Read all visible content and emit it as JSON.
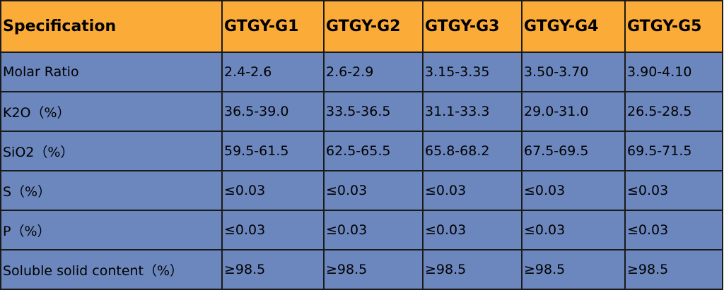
{
  "table": {
    "header": [
      "Specification",
      "GTGY-G1",
      "GTGY-G2",
      "GTGY-G3",
      "GTGY-G4",
      "GTGY-G5"
    ],
    "rows": [
      [
        "Molar Ratio",
        "2.4-2.6",
        "2.6-2.9",
        "3.15-3.35",
        "3.50-3.70",
        "3.90-4.10"
      ],
      [
        "K2O（%）",
        "36.5-39.0",
        "33.5-36.5",
        "31.1-33.3",
        "29.0-31.0",
        "26.5-28.5"
      ],
      [
        "SiO2（%）",
        "59.5-61.5",
        "62.5-65.5",
        "65.8-68.2",
        "67.5-69.5",
        "69.5-71.5"
      ],
      [
        "S（%）",
        "≤0.03",
        "≤0.03",
        "≤0.03",
        "≤0.03",
        "≤0.03"
      ],
      [
        "P（%）",
        "≤0.03",
        "≤0.03",
        "≤0.03",
        "≤0.03",
        "≤0.03"
      ],
      [
        "Soluble solid content（%）",
        "≥98.5",
        "≥98.5",
        "≥98.5",
        "≥98.5",
        "≥98.5"
      ]
    ]
  }
}
